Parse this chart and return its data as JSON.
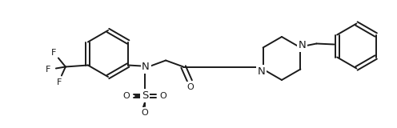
{
  "background": "#ffffff",
  "figsize": [
    4.96,
    1.6
  ],
  "dpi": 100,
  "line_color": "#1a1a1a",
  "line_width": 1.4,
  "font_size": 8.5,
  "atoms": {
    "N_color": "#1a1a1a",
    "O_color": "#1a1a1a",
    "F_color": "#1a1a1a",
    "S_color": "#1a1a1a"
  },
  "xlim": [
    0,
    496
  ],
  "ylim": [
    0,
    160
  ]
}
